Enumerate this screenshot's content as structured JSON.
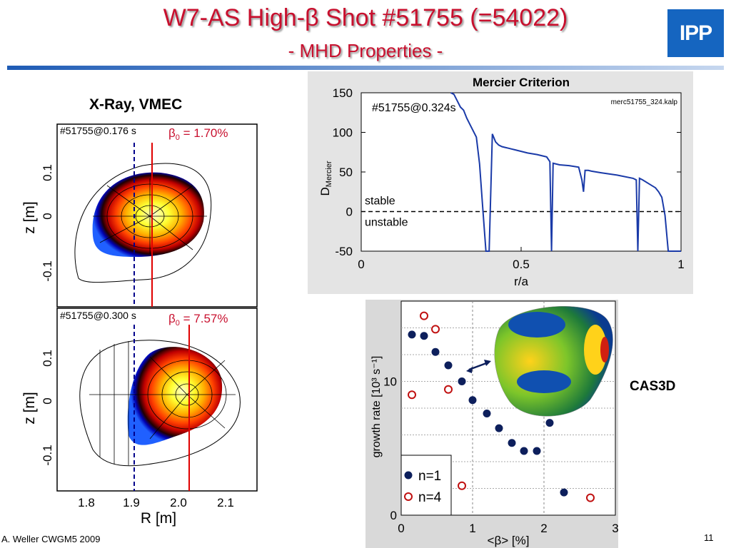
{
  "slide": {
    "title": "W7-AS High-β Shot #51755 (=54022)",
    "subtitle": "- MHD Properties -",
    "logo_text": "IPP",
    "footer_left": "A. Weller CWGM5 2009",
    "page_number": "11",
    "colors": {
      "title": "#c8102e",
      "logo": "#1565c0",
      "curve": "#1a3aa8",
      "marker_n1": "#0d1f5c",
      "marker_n4": "#c01010"
    }
  },
  "xray": {
    "title": "X-Ray, VMEC",
    "top_panel": {
      "shot": "#51755@0.176 s",
      "beta_sym": "β",
      "beta_sub": "0",
      "beta_rest": " = 1.70%"
    },
    "bottom_panel": {
      "shot": "#51755@0.300 s",
      "beta_sym": "β",
      "beta_sub": "0",
      "beta_rest": " = 7.57%"
    },
    "ylabel": "z [m]",
    "xlabel": "R [m]",
    "yticks": [
      "0.1",
      "0",
      "-0.1"
    ],
    "xticks": [
      "1.8",
      "1.9",
      "2.0",
      "2.1"
    ]
  },
  "chart_data": [
    {
      "type": "line",
      "title": "Mercier Criterion",
      "annotation": "#51755@0.324s",
      "file_label": "merc51755_324.kalp",
      "ylabel_main": "D",
      "ylabel_sub": "Mercier",
      "xlabel": "r/a",
      "xlim": [
        0,
        1
      ],
      "ylim": [
        -50,
        150
      ],
      "xticks": [
        "0",
        "0.5",
        "1"
      ],
      "yticks": [
        "150",
        "100",
        "50",
        "0",
        "-50"
      ],
      "stable_label": "stable",
      "unstable_label": "unstable",
      "x": [
        0.28,
        0.29,
        0.3,
        0.31,
        0.32,
        0.33,
        0.34,
        0.35,
        0.36,
        0.37,
        0.38,
        0.39,
        0.4,
        0.41,
        0.42,
        0.43,
        0.44,
        0.45,
        0.46,
        0.47,
        0.48,
        0.49,
        0.5,
        0.52,
        0.55,
        0.58,
        0.59,
        0.595,
        0.6,
        0.61,
        0.62,
        0.65,
        0.68,
        0.69,
        0.695,
        0.7,
        0.71,
        0.72,
        0.75,
        0.8,
        0.85,
        0.86,
        0.865,
        0.87,
        0.88,
        0.9,
        0.92,
        0.93,
        0.94,
        0.95,
        0.96,
        0.97,
        0.98,
        0.99,
        1.0
      ],
      "y": [
        150,
        148,
        140,
        132,
        128,
        118,
        110,
        102,
        94,
        60,
        5,
        -50,
        -50,
        98,
        88,
        84,
        82,
        81,
        80,
        79,
        78,
        77,
        76,
        74,
        72,
        69,
        63,
        -50,
        61,
        60,
        59,
        58,
        56,
        40,
        25,
        52,
        52,
        51,
        49,
        46,
        42,
        40,
        -50,
        42,
        40,
        35,
        30,
        25,
        18,
        -5,
        -50,
        -50,
        -50,
        -50,
        -50
      ]
    },
    {
      "type": "scatter",
      "ylabel": "growth rate [10³ s⁻¹]",
      "xlabel_pre": "<",
      "xlabel_sym": "β",
      "xlabel_post": "> [%]",
      "xlim": [
        0,
        3
      ],
      "ylim": [
        0,
        16
      ],
      "xticks": [
        "0",
        "1",
        "2",
        "3"
      ],
      "yticks": [
        "10",
        "0"
      ],
      "series": [
        {
          "name": "n=1",
          "x": [
            0.15,
            0.32,
            0.48,
            0.66,
            0.85,
            1.0,
            1.2,
            1.37,
            1.55,
            1.72,
            1.9,
            2.08,
            2.28
          ],
          "y": [
            13.5,
            13.4,
            12.2,
            11.2,
            10.0,
            8.6,
            7.6,
            6.5,
            5.4,
            4.8,
            4.8,
            6.9,
            1.7
          ]
        },
        {
          "name": "n=4",
          "x": [
            0.15,
            0.32,
            0.48,
            0.66,
            0.85,
            2.65
          ],
          "y": [
            9.0,
            14.9,
            13.9,
            9.4,
            2.2,
            1.3
          ]
        }
      ]
    }
  ],
  "cas3d": {
    "label": "CAS3D"
  }
}
